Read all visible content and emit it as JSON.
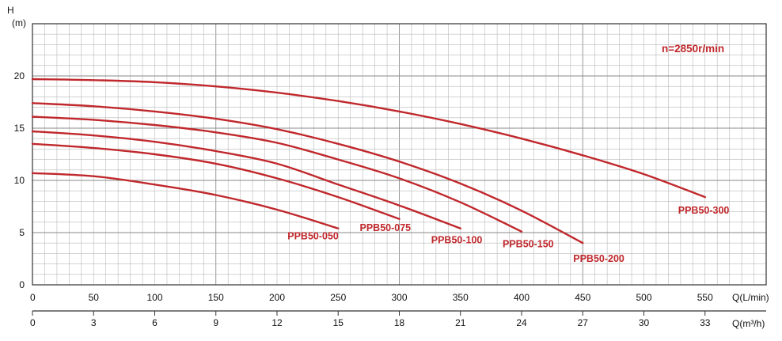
{
  "chart_data": {
    "type": "line",
    "speed_label": "n=2850r/min",
    "ylabel": "H",
    "yunit": "(m)",
    "xlabel": "Q(L/min)",
    "x2label": "Q(m³/h)",
    "xlim": [
      0,
      600
    ],
    "ylim": [
      0,
      25
    ],
    "x_ticks": [
      "0",
      "50",
      "100",
      "150",
      "200",
      "250",
      "300",
      "350",
      "400",
      "450",
      "500",
      "550"
    ],
    "x2_ticks": [
      "0",
      "3",
      "6",
      "9",
      "12",
      "15",
      "18",
      "21",
      "24",
      "27",
      "30",
      "33"
    ],
    "y_ticks": [
      "0",
      "5",
      "10",
      "15",
      "20"
    ],
    "grid": true,
    "colors": {
      "curve": "#c0282c",
      "label": "#c0282c"
    },
    "series": [
      {
        "name": "PPB50-050",
        "x": [
          0,
          50,
          100,
          150,
          200,
          250
        ],
        "y": [
          10.7,
          10.4,
          9.6,
          8.6,
          7.2,
          5.4
        ]
      },
      {
        "name": "PPB50-075",
        "x": [
          0,
          50,
          100,
          150,
          200,
          250,
          300
        ],
        "y": [
          13.5,
          13.1,
          12.5,
          11.6,
          10.2,
          8.4,
          6.3
        ]
      },
      {
        "name": "PPB50-100",
        "x": [
          0,
          50,
          100,
          150,
          200,
          250,
          300,
          350
        ],
        "y": [
          14.7,
          14.3,
          13.7,
          12.8,
          11.6,
          9.6,
          7.6,
          5.4
        ]
      },
      {
        "name": "PPB50-150",
        "x": [
          0,
          50,
          100,
          150,
          200,
          250,
          300,
          350,
          400
        ],
        "y": [
          16.1,
          15.8,
          15.3,
          14.6,
          13.6,
          12.0,
          10.2,
          7.9,
          5.1
        ]
      },
      {
        "name": "PPB50-200",
        "x": [
          0,
          50,
          100,
          150,
          200,
          250,
          300,
          350,
          400,
          450
        ],
        "y": [
          17.4,
          17.1,
          16.6,
          15.9,
          14.9,
          13.5,
          11.8,
          9.7,
          7.1,
          4.0
        ]
      },
      {
        "name": "PPB50-300",
        "x": [
          0,
          50,
          100,
          150,
          200,
          250,
          300,
          350,
          400,
          450,
          500,
          550
        ],
        "y": [
          19.7,
          19.6,
          19.4,
          19.0,
          18.4,
          17.6,
          16.6,
          15.4,
          14.0,
          12.4,
          10.6,
          8.4
        ]
      }
    ]
  }
}
